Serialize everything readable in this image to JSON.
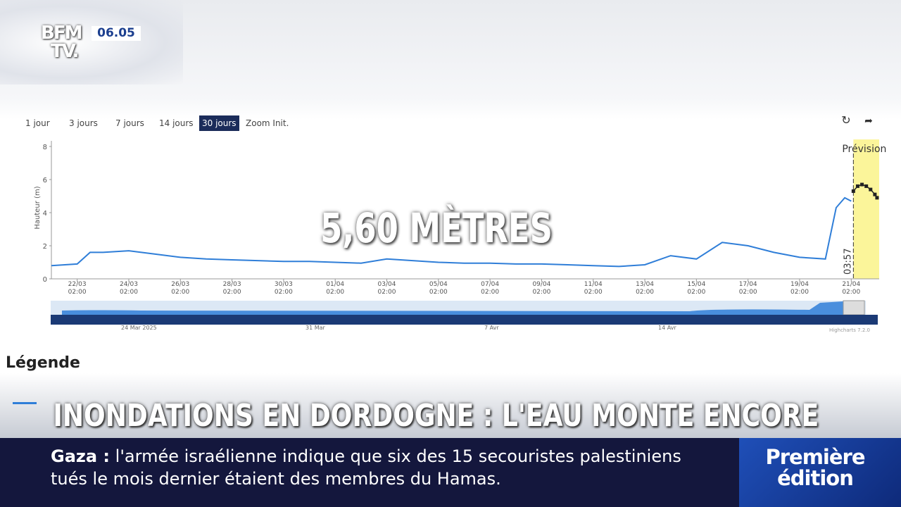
{
  "header": {
    "logo_top": "BFM",
    "logo_bottom": "TV.",
    "time": "06.05"
  },
  "range_buttons": [
    "1 jour",
    "3 jours",
    "7 jours",
    "14 jours",
    "30 jours",
    "Zoom Init."
  ],
  "selected_button": 4,
  "chart_data": {
    "type": "line",
    "ylabel": "Hauteur (m)",
    "ylim": [
      0,
      8
    ],
    "yticks": [
      0,
      2,
      4,
      6,
      8
    ],
    "xlim": [
      "21/03 02:00",
      "22/04 04:00"
    ],
    "xticks": [
      "22/03 02:00",
      "24/03 02:00",
      "26/03 02:00",
      "28/03 02:00",
      "30/03 02:00",
      "01/04 02:00",
      "03/04 02:00",
      "05/04 02:00",
      "07/04 02:00",
      "09/04 02:00",
      "11/04 02:00",
      "13/04 02:00",
      "15/04 02:00",
      "17/04 02:00",
      "19/04 02:00",
      "21/04 02:00"
    ],
    "series": [
      {
        "color": "#2f7ed8",
        "x": [
          "21/03 02:00",
          "22/03 02:00",
          "22/03 14:00",
          "23/03 02:00",
          "24/03 02:00",
          "25/03 02:00",
          "26/03 02:00",
          "27/03 02:00",
          "28/03 02:00",
          "29/03 02:00",
          "30/03 02:00",
          "31/03 02:00",
          "01/04 02:00",
          "02/04 02:00",
          "03/04 02:00",
          "04/04 02:00",
          "05/04 02:00",
          "06/04 02:00",
          "07/04 02:00",
          "08/04 02:00",
          "09/04 02:00",
          "10/04 02:00",
          "11/04 02:00",
          "12/04 02:00",
          "13/04 02:00",
          "14/04 02:00",
          "15/04 02:00",
          "16/04 02:00",
          "17/04 02:00",
          "18/04 02:00",
          "19/04 02:00",
          "20/04 02:00",
          "20/04 12:00",
          "20/04 20:00",
          "21/04 02:00"
        ],
        "values": [
          0.8,
          0.9,
          1.6,
          1.6,
          1.7,
          1.5,
          1.3,
          1.2,
          1.15,
          1.1,
          1.05,
          1.05,
          1.0,
          0.95,
          1.2,
          1.1,
          1.0,
          0.95,
          0.95,
          0.9,
          0.9,
          0.85,
          0.8,
          0.75,
          0.85,
          1.4,
          1.2,
          2.2,
          2.0,
          1.6,
          1.3,
          1.2,
          4.3,
          4.9,
          4.7
        ]
      },
      {
        "color": "#222222",
        "x": [
          "21/04 04:00",
          "21/04 08:00",
          "21/04 12:00",
          "21/04 16:00",
          "21/04 20:00",
          "22/04 00:00",
          "22/04 02:00"
        ],
        "values": [
          5.3,
          5.6,
          5.7,
          5.6,
          5.4,
          5.1,
          4.9
        ]
      }
    ],
    "forecast_band": [
      "21/04 04:00",
      "22/04 04:00"
    ],
    "forecast_label": "Prévision",
    "now_label": "03:57"
  },
  "navigator": {
    "labels": [
      "24 Mar 2025",
      "31 Mar",
      "7 Avr",
      "14 Avr"
    ],
    "credit": "Highcharts 7.2.0"
  },
  "legend_title": "Légende",
  "overlay": {
    "value": "5,60 MÈTRES",
    "headline": "INONDATIONS EN DORDOGNE : L'EAU MONTE ENCORE",
    "ticker_label": "Gaza :",
    "ticker_line1": "l'armée israélienne indique que six des 15 secouristes palestiniens",
    "ticker_line2": "tués le mois dernier étaient des membres du Hamas.",
    "show_top": "Première",
    "show_bottom": "édition"
  }
}
